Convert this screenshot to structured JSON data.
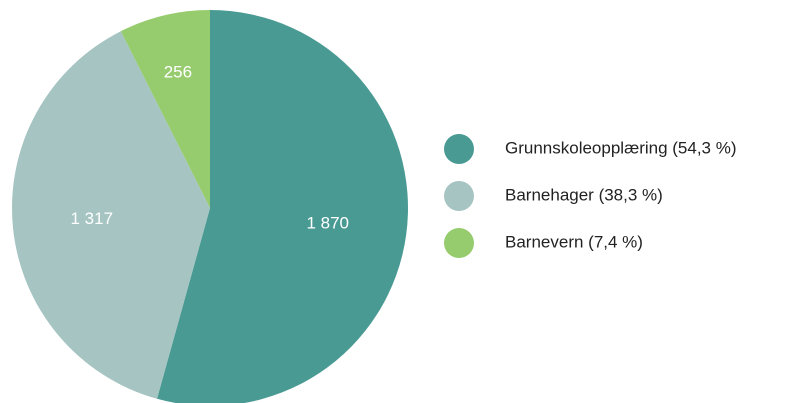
{
  "chart_data": {
    "type": "pie",
    "categories": [
      "Grunnskoleopplæring (54,3 %)",
      "Barnehager (38,3 %)",
      "Barnevern (7,4 %)"
    ],
    "values": [
      1870,
      1317,
      256
    ],
    "value_labels": [
      "1 870",
      "1 317",
      "256"
    ],
    "colors": [
      "#4a9a94",
      "#a5c4c2",
      "#96cc6e"
    ]
  }
}
